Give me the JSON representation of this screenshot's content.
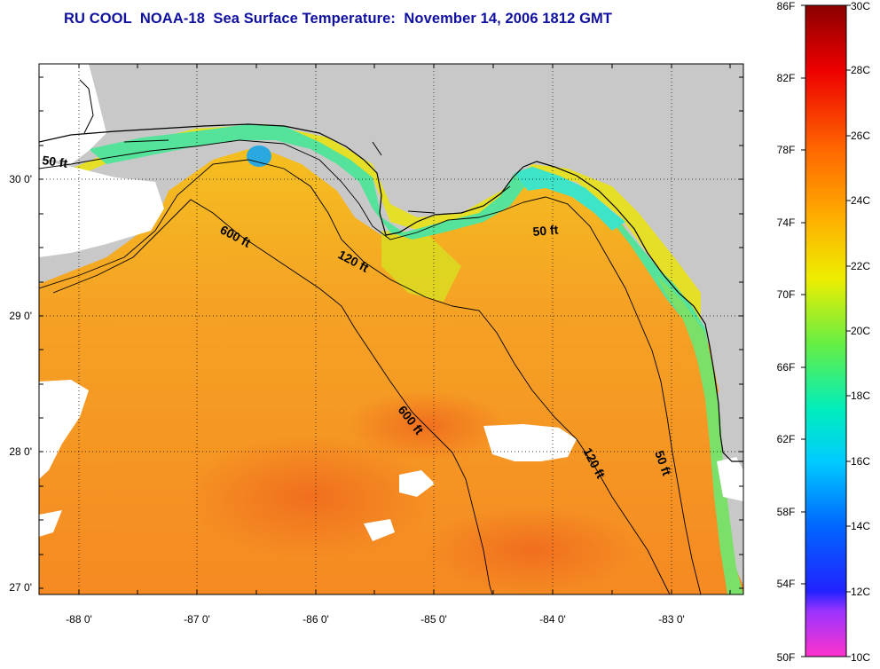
{
  "title": "RU COOL  NOAA-18  Sea Surface Temperature:  November 14, 2006 1812 GMT",
  "map": {
    "latitude_ticks": [
      "30 0'",
      "29 0'",
      "28 0'",
      "27 0'"
    ],
    "longitude_ticks": [
      "-88 0'",
      "-87 0'",
      "-86 0'",
      "-85 0'",
      "-84 0'",
      "-83 0'"
    ],
    "extent": {
      "lon": [
        -88.3,
        -82.4
      ],
      "lat": [
        26.95,
        30.85
      ]
    },
    "colors": {
      "land": "#c8c8c8",
      "clouds": "#ffffff",
      "coastline": "#000000"
    },
    "contour_labels": [
      "50 ft",
      "600 ft",
      "120 ft",
      "50 ft",
      "600 ft",
      "120 ft",
      "50 ft"
    ]
  },
  "colorbar": {
    "fahrenheit_labels": [
      "86F",
      "82F",
      "78F",
      "74F",
      "70F",
      "66F",
      "62F",
      "58F",
      "54F",
      "50F"
    ],
    "celsius_labels": [
      "30C",
      "28C",
      "26C",
      "24C",
      "22C",
      "20C",
      "18C",
      "16C",
      "14C",
      "12C",
      "10C"
    ],
    "range_c": [
      10,
      30
    ],
    "range_f": [
      50,
      86
    ]
  }
}
